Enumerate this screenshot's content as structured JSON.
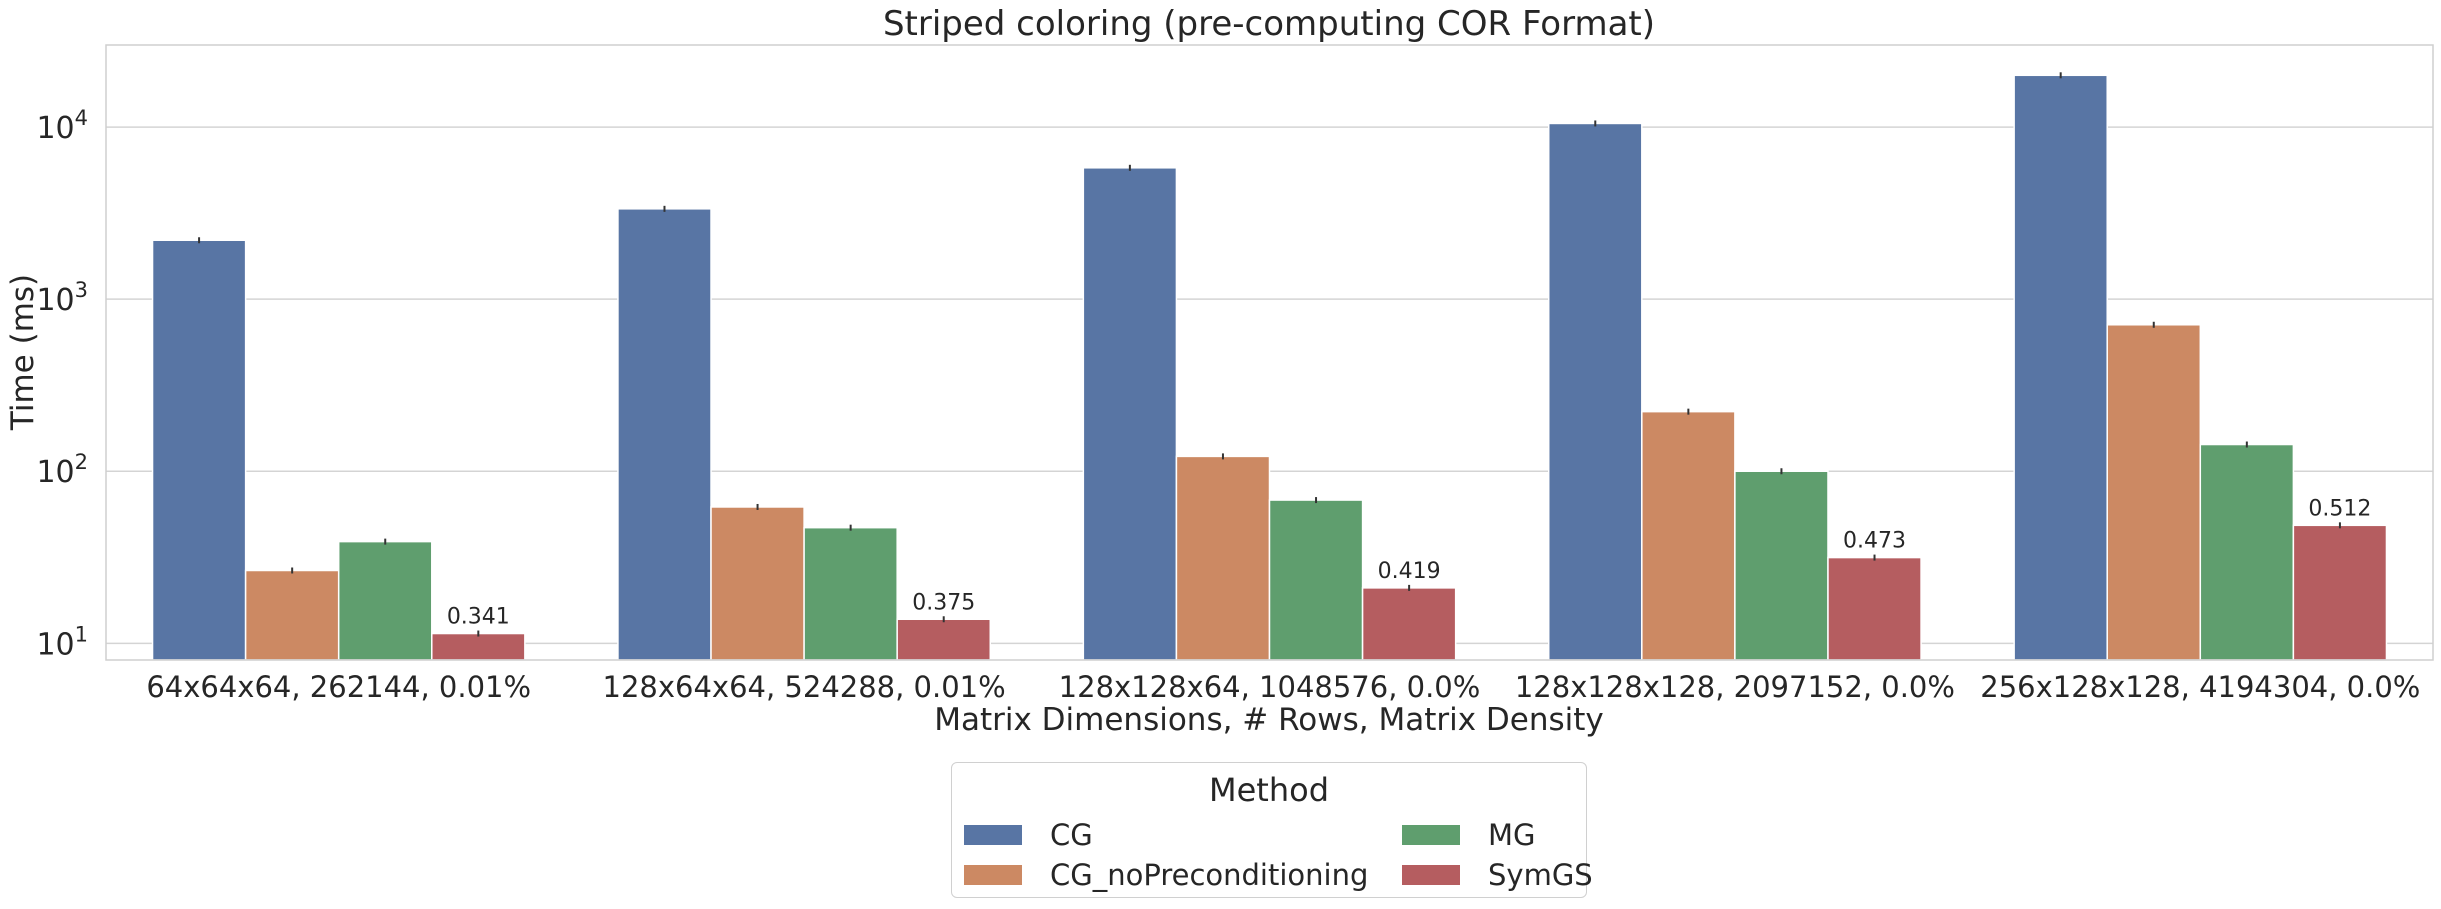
{
  "chart_data": {
    "type": "bar",
    "title": "Striped coloring (pre-computing COR Format)",
    "xlabel": "Matrix Dimensions, # Rows, Matrix Density",
    "ylabel": "Time (ms)",
    "yscale": "log",
    "ylim": [
      8,
      30000
    ],
    "yticks": [
      {
        "value": 10,
        "base": "10",
        "exp": "1"
      },
      {
        "value": 100,
        "base": "10",
        "exp": "2"
      },
      {
        "value": 1000,
        "base": "10",
        "exp": "3"
      },
      {
        "value": 10000,
        "base": "10",
        "exp": "4"
      }
    ],
    "grid": true,
    "categories": [
      "64x64x64, 262144, 0.01%",
      "128x64x64, 524288, 0.01%",
      "128x128x64, 1048576, 0.0%",
      "128x128x128, 2097152, 0.0%",
      "256x128x128, 4194304, 0.0%"
    ],
    "series": [
      {
        "name": "CG",
        "color": "#5875a4",
        "values": [
          2200,
          3350,
          5800,
          10500,
          20000
        ]
      },
      {
        "name": "CG_noPreconditioning",
        "color": "#cc8963",
        "values": [
          26.5,
          62,
          122,
          222,
          710
        ]
      },
      {
        "name": "MG",
        "color": "#5f9e6e",
        "values": [
          39,
          47,
          68,
          100,
          143
        ]
      },
      {
        "name": "SymGS",
        "color": "#b55d60",
        "values": [
          11.4,
          13.8,
          21,
          31.5,
          48.5
        ]
      }
    ],
    "annotations": {
      "series": "SymGS",
      "labels": [
        "0.341",
        "0.375",
        "0.419",
        "0.473",
        "0.512"
      ]
    },
    "legend": {
      "title": "Method",
      "placement": "bottom-center"
    }
  }
}
